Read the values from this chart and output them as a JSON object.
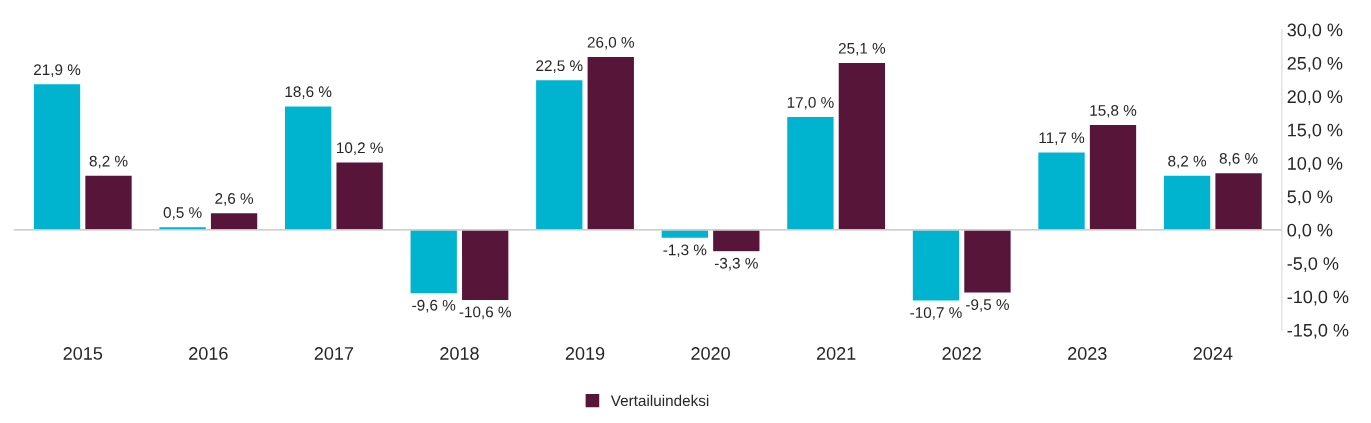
{
  "chart_data": {
    "type": "bar",
    "categories": [
      "2015",
      "2016",
      "2017",
      "2018",
      "2019",
      "2020",
      "2021",
      "2022",
      "2023",
      "2024"
    ],
    "series": [
      {
        "color": "#00b4d0",
        "values": [
          21.9,
          0.5,
          18.6,
          -9.6,
          22.5,
          -1.3,
          17.0,
          -10.7,
          11.7,
          8.2
        ],
        "value_labels": [
          "21,9 %",
          "0,5 %",
          "18,6 %",
          "-9,6 %",
          "22,5 %",
          "-1,3 %",
          "17,0 %",
          "-10,7 %",
          "11,7 %",
          "8,2 %"
        ]
      },
      {
        "name": "Vertailuindeksi",
        "color": "#58153a",
        "values": [
          8.2,
          2.6,
          10.2,
          -10.6,
          26.0,
          -3.3,
          25.1,
          -9.5,
          15.8,
          8.6
        ],
        "value_labels": [
          "8,2 %",
          "2,6 %",
          "10,2 %",
          "-10,6 %",
          "26,0 %",
          "-3,3 %",
          "25,1 %",
          "-9,5 %",
          "15,8 %",
          "8,6 %"
        ]
      }
    ],
    "ylim": [
      -15,
      30
    ],
    "yticks": [
      {
        "value": 30,
        "label": "30,0 %"
      },
      {
        "value": 25,
        "label": "25,0 %"
      },
      {
        "value": 20,
        "label": "20,0 %"
      },
      {
        "value": 15,
        "label": "15,0 %"
      },
      {
        "value": 10,
        "label": "10,0 %"
      },
      {
        "value": 5,
        "label": "5,0 %"
      },
      {
        "value": 0,
        "label": "0,0 %"
      },
      {
        "value": -5,
        "label": "-5,0 %"
      },
      {
        "value": -10,
        "label": "-10,0 %"
      },
      {
        "value": -15,
        "label": "-15,0 %"
      }
    ],
    "legend": "bottom"
  }
}
